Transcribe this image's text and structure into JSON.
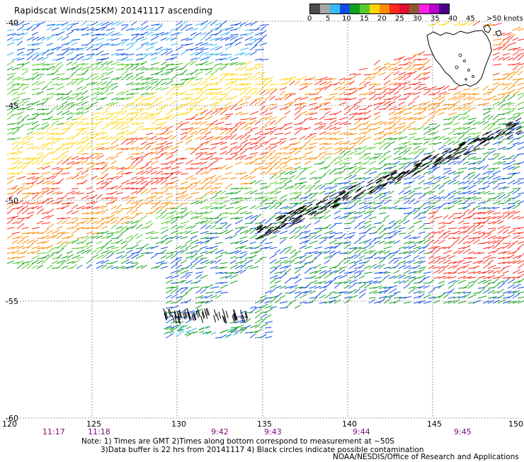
{
  "header": {
    "title": "Rapidscat Winds(25KM) 20141117 ascending"
  },
  "legend": {
    "labels": [
      "0",
      "5",
      "10",
      "15",
      "20",
      "25",
      "30",
      "35",
      "40",
      "45",
      ">50 knots"
    ],
    "colors": [
      "#4d4d4d",
      "#a6a6a6",
      "#39b9f2",
      "#0f4ee6",
      "#13a020",
      "#57cc2a",
      "#ffd500",
      "#ff8c00",
      "#ff2a1a",
      "#e0102e",
      "#8a5a2e",
      "#ff1ee8",
      "#b400c8",
      "#4b0088"
    ]
  },
  "map": {
    "lon_labels": [
      "120",
      "125",
      "130",
      "135",
      "140",
      "145",
      "150"
    ],
    "lat_labels": [
      "-40",
      "-45",
      "-50",
      "-55",
      "-60"
    ],
    "time_labels": [
      "11:17",
      "11:18",
      "9:42",
      "9:43",
      "9:44",
      "9:45"
    ],
    "land": "Tasmania"
  },
  "notes": {
    "line1": "Note: 1) Times are GMT 2)Times along bottom correspond to measurement at ~50S",
    "line2": "3)Data buffer is 22 hrs from 20141117 4) Black circles indicate possible contamination",
    "line3": "NOAA/NESDIS/Office of Research and Applications"
  }
}
